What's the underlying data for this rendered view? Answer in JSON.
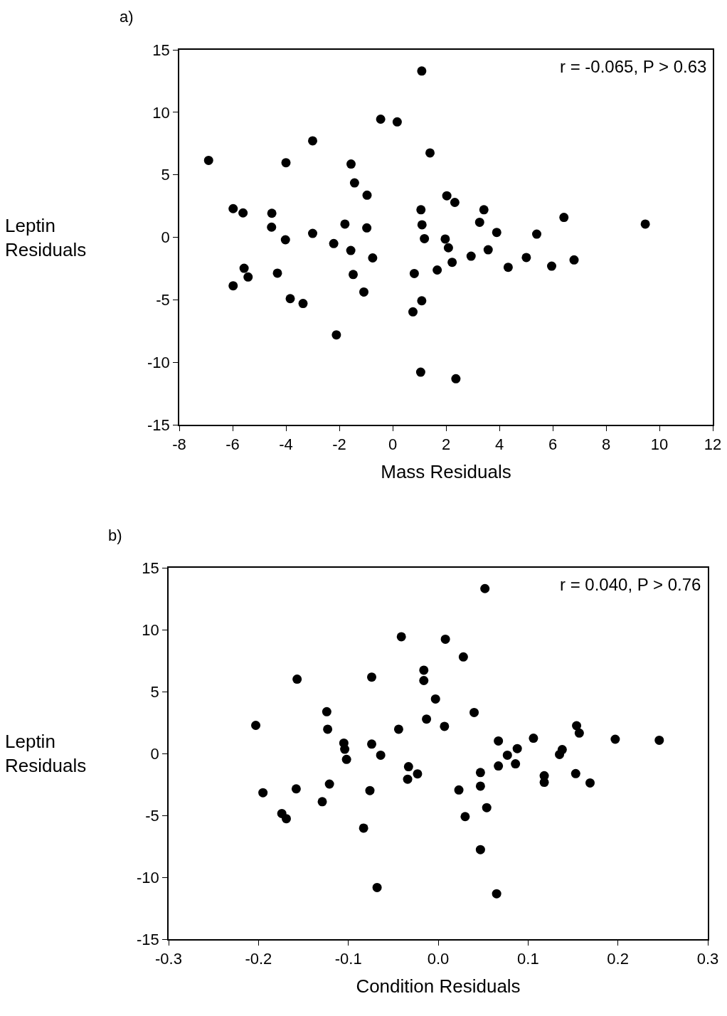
{
  "chart_data": [
    {
      "type": "scatter",
      "xlabel": "Mass Residuals",
      "ylabel": "Leptin Residuals",
      "annotations": [
        "a)",
        "r = -0.065, P > 0.63"
      ],
      "xlim": [
        -8,
        12
      ],
      "xticks": [
        -8,
        -6,
        -4,
        -2,
        0,
        2,
        4,
        6,
        8,
        10,
        12
      ],
      "ylim": [
        -15,
        15
      ],
      "yticks": [
        -15,
        -10,
        -5,
        0,
        5,
        10,
        15
      ],
      "grid": false,
      "marker": "circle",
      "series": [
        {
          "color": "#000000",
          "x": [
            1.09,
            -0.45,
            0.17,
            -3.0,
            -6.9,
            -4.0,
            1.4,
            -1.56,
            -1.43,
            -0.96,
            2.03,
            2.33,
            1.06,
            3.42,
            -5.98,
            -5.61,
            -4.53,
            6.42,
            3.26,
            9.47,
            -1.79,
            1.1,
            -4.54,
            -0.97,
            -3.0,
            3.9,
            5.4,
            -4.02,
            1.19,
            1.97,
            -2.21,
            2.09,
            -1.57,
            -0.75,
            3.58,
            2.94,
            5.01,
            6.8,
            2.23,
            4.33,
            5.96,
            -5.57,
            -5.42,
            -4.32,
            -1.48,
            0.81,
            1.67,
            -5.98,
            -3.84,
            -3.36,
            -1.08,
            1.09,
            0.76,
            -2.11,
            1.05,
            2.37
          ],
          "values": [
            13.3,
            9.45,
            9.23,
            7.72,
            6.15,
            5.97,
            6.75,
            5.86,
            4.35,
            3.37,
            3.32,
            2.79,
            2.2,
            2.2,
            2.29,
            1.95,
            1.92,
            1.59,
            1.2,
            1.06,
            1.06,
            1.0,
            0.81,
            0.75,
            0.31,
            0.39,
            0.25,
            -0.2,
            -0.11,
            -0.14,
            -0.5,
            -0.84,
            -1.06,
            -1.65,
            -1.0,
            -1.51,
            -1.62,
            -1.81,
            -2.0,
            -2.4,
            -2.31,
            -2.48,
            -3.18,
            -2.87,
            -2.98,
            -2.9,
            -2.62,
            -3.88,
            -4.91,
            -5.3,
            -4.38,
            -5.08,
            -5.97,
            -7.81,
            -10.79,
            -11.32
          ]
        }
      ]
    },
    {
      "type": "scatter",
      "xlabel": "Condition Residuals",
      "ylabel": "Leptin Residuals",
      "annotations": [
        "b)",
        "r = 0.040, P > 0.76"
      ],
      "xlim": [
        -0.3,
        0.3
      ],
      "xticks": [
        -0.3,
        -0.2,
        -0.1,
        {
          "value": 0,
          "label": "0.0"
        },
        0.1,
        0.2,
        0.3
      ],
      "ylim": [
        -15,
        15
      ],
      "yticks": [
        -15,
        -10,
        -5,
        0,
        5,
        10,
        15
      ],
      "grid": false,
      "marker": "circle",
      "series": [
        {
          "color": "#000000",
          "x": [
            0.052,
            -0.041,
            0.008,
            0.028,
            -0.016,
            -0.016,
            -0.157,
            -0.074,
            -0.003,
            -0.124,
            0.04,
            -0.013,
            -0.203,
            -0.123,
            -0.044,
            0.007,
            0.154,
            0.157,
            0.106,
            0.197,
            0.246,
            0.067,
            -0.105,
            -0.104,
            -0.074,
            -0.102,
            -0.064,
            0.088,
            0.077,
            0.138,
            0.135,
            0.067,
            0.086,
            0.047,
            -0.033,
            -0.034,
            -0.023,
            0.118,
            0.118,
            0.153,
            0.169,
            0.047,
            0.023,
            -0.076,
            -0.121,
            -0.158,
            -0.195,
            -0.129,
            0.054,
            -0.174,
            -0.169,
            0.03,
            -0.083,
            0.047,
            -0.068,
            0.065
          ],
          "values": [
            13.32,
            9.43,
            9.23,
            7.8,
            6.73,
            5.89,
            6.0,
            6.17,
            4.4,
            3.37,
            3.31,
            2.78,
            2.27,
            1.96,
            1.96,
            2.19,
            2.24,
            1.65,
            1.23,
            1.15,
            1.07,
            1.01,
            0.84,
            0.34,
            0.76,
            -0.48,
            -0.14,
            0.39,
            -0.14,
            0.31,
            -0.08,
            -1.01,
            -0.84,
            -1.54,
            -1.07,
            -2.08,
            -1.65,
            -1.8,
            -2.33,
            -1.63,
            -2.38,
            -2.64,
            -2.95,
            -3.0,
            -2.47,
            -2.86,
            -3.17,
            -3.9,
            -4.38,
            -4.85,
            -5.27,
            -5.1,
            -6.03,
            -7.77,
            -10.83,
            -11.33
          ]
        }
      ]
    }
  ]
}
